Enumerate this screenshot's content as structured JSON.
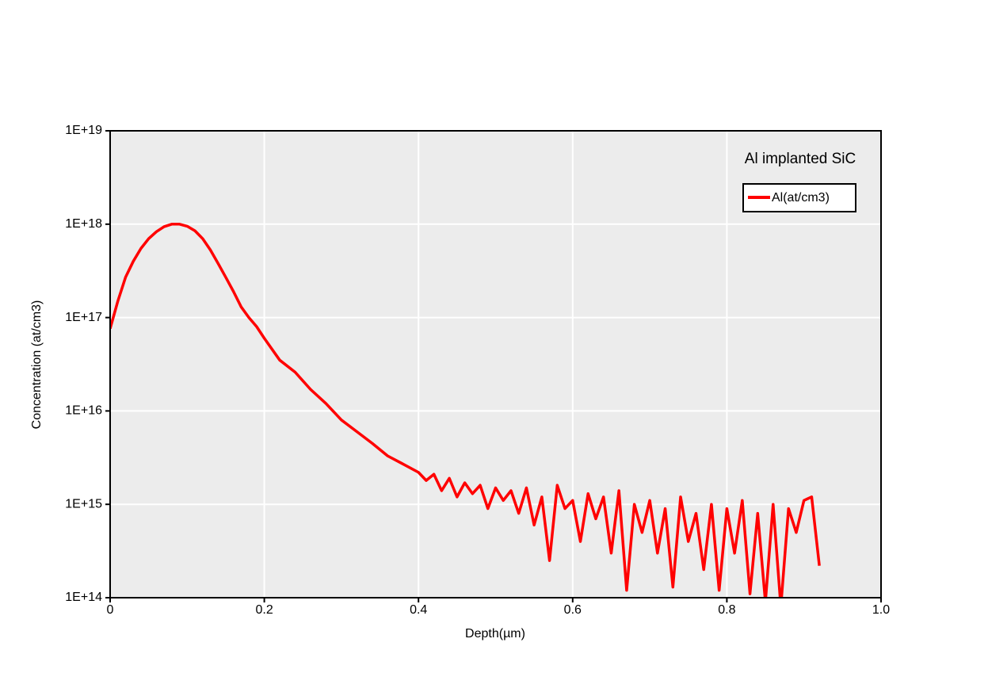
{
  "chart_data": {
    "type": "line",
    "x_label": "Depth(µm)",
    "y_label": "Concentration (at/cm3)",
    "legend_title": "Al implanted SiC",
    "legend_position": "upper right",
    "log_y": true,
    "grid": true,
    "background": "#ececec",
    "grid_color": "#ffffff",
    "xlim": [
      0,
      1
    ],
    "ylim": [
      100000000000000.0,
      1e+19
    ],
    "xticks": [
      0,
      0.2,
      0.4,
      0.6,
      0.8,
      {
        "value": 1,
        "label": "1.0"
      }
    ],
    "yticks": [
      {
        "value": 100000000000000.0,
        "label": "1E+14"
      },
      {
        "value": 1000000000000000.0,
        "label": "1E+15"
      },
      {
        "value": 1e+16,
        "label": "1E+16"
      },
      {
        "value": 1e+17,
        "label": "1E+17"
      },
      {
        "value": 1e+18,
        "label": "1E+18"
      },
      {
        "value": 1e+19,
        "label": "1E+19"
      }
    ],
    "x": [
      0,
      0.01,
      0.02,
      0.03,
      0.04,
      0.05,
      0.06,
      0.07,
      0.08,
      0.09,
      0.1,
      0.11,
      0.12,
      0.13,
      0.14,
      0.15,
      0.16,
      0.17,
      0.18,
      0.19,
      0.2,
      0.22,
      0.24,
      0.26,
      0.28,
      0.3,
      0.32,
      0.34,
      0.36,
      0.38,
      0.4,
      0.41,
      0.42,
      0.43,
      0.44,
      0.45,
      0.46,
      0.47,
      0.48,
      0.49,
      0.5,
      0.51,
      0.52,
      0.53,
      0.54,
      0.55,
      0.56,
      0.57,
      0.58,
      0.59,
      0.6,
      0.61,
      0.62,
      0.63,
      0.64,
      0.65,
      0.66,
      0.67,
      0.68,
      0.69,
      0.7,
      0.71,
      0.72,
      0.73,
      0.74,
      0.75,
      0.76,
      0.77,
      0.78,
      0.79,
      0.8,
      0.81,
      0.82,
      0.83,
      0.84,
      0.85,
      0.86,
      0.87,
      0.88,
      0.89,
      0.9,
      0.91,
      0.92
    ],
    "series": [
      {
        "name": "Al(at/cm3)",
        "color": "#ff0000",
        "values": [
          7.6e+16,
          1.5e+17,
          2.7e+17,
          4e+17,
          5.5e+17,
          7e+17,
          8.3e+17,
          9.4e+17,
          1e+18,
          1e+18,
          9.5e+17,
          8.5e+17,
          7e+17,
          5.3e+17,
          3.8e+17,
          2.7e+17,
          1.9e+17,
          1.3e+17,
          1e+17,
          8e+16,
          6e+16,
          3.5e+16,
          2.6e+16,
          1.7e+16,
          1.2e+16,
          8000000000000000.0,
          6000000000000000.0,
          4500000000000000.0,
          3300000000000000.0,
          2700000000000000.0,
          2200000000000000.0,
          1800000000000000.0,
          2100000000000000.0,
          1400000000000000.0,
          1900000000000000.0,
          1200000000000000.0,
          1700000000000000.0,
          1300000000000000.0,
          1600000000000000.0,
          900000000000000.0,
          1500000000000000.0,
          1100000000000000.0,
          1400000000000000.0,
          800000000000000.0,
          1500000000000000.0,
          600000000000000.0,
          1200000000000000.0,
          250000000000000.0,
          1600000000000000.0,
          900000000000000.0,
          1100000000000000.0,
          400000000000000.0,
          1300000000000000.0,
          700000000000000.0,
          1200000000000000.0,
          300000000000000.0,
          1400000000000000.0,
          120000000000000.0,
          1000000000000000.0,
          500000000000000.0,
          1100000000000000.0,
          300000000000000.0,
          900000000000000.0,
          130000000000000.0,
          1200000000000000.0,
          400000000000000.0,
          800000000000000.0,
          200000000000000.0,
          1000000000000000.0,
          120000000000000.0,
          900000000000000.0,
          300000000000000.0,
          1100000000000000.0,
          110000000000000.0,
          800000000000000.0,
          90000000000000.0,
          1000000000000000.0,
          80000000000000.0,
          900000000000000.0,
          500000000000000.0,
          1100000000000000.0,
          1200000000000000.0,
          220000000000000.0
        ]
      }
    ]
  }
}
